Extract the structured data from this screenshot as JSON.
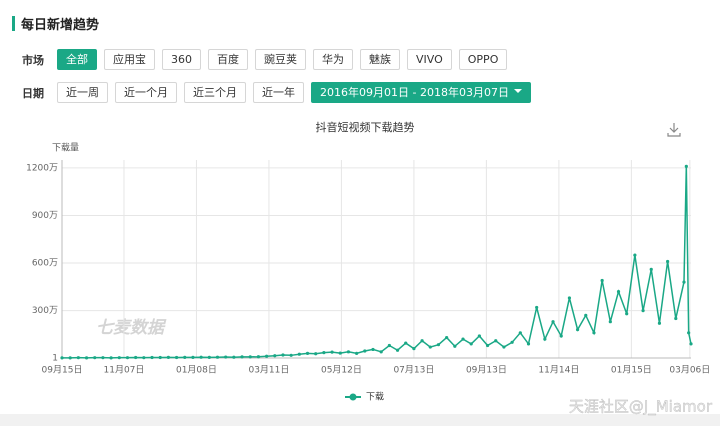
{
  "header": {
    "title": "每日新增趋势"
  },
  "market": {
    "label": "市场",
    "active": 0,
    "options": [
      "全部",
      "应用宝",
      "360",
      "百度",
      "豌豆荚",
      "华为",
      "魅族",
      "VIVO",
      "OPPO"
    ]
  },
  "date": {
    "label": "日期",
    "options": [
      "近一周",
      "近一个月",
      "近三个月",
      "近一年"
    ],
    "range": "2016年09月01日 - 2018年03月07日"
  },
  "chart_data": {
    "type": "line",
    "title": "抖音短视频下载趋势",
    "y_label": "下载量",
    "watermark": "七麦数据",
    "x": [
      "2016-09-15",
      "2016-09-22",
      "2016-09-29",
      "2016-10-06",
      "2016-10-13",
      "2016-10-20",
      "2016-10-27",
      "2016-11-03",
      "2016-11-10",
      "2016-11-17",
      "2016-11-24",
      "2016-12-01",
      "2016-12-08",
      "2016-12-15",
      "2016-12-22",
      "2016-12-29",
      "2017-01-05",
      "2017-01-12",
      "2017-01-19",
      "2017-01-26",
      "2017-02-02",
      "2017-02-09",
      "2017-02-16",
      "2017-02-23",
      "2017-03-02",
      "2017-03-09",
      "2017-03-16",
      "2017-03-23",
      "2017-03-30",
      "2017-04-06",
      "2017-04-13",
      "2017-04-20",
      "2017-04-27",
      "2017-05-04",
      "2017-05-11",
      "2017-05-18",
      "2017-05-25",
      "2017-06-01",
      "2017-06-08",
      "2017-06-15",
      "2017-06-22",
      "2017-06-29",
      "2017-07-06",
      "2017-07-13",
      "2017-07-20",
      "2017-07-27",
      "2017-08-03",
      "2017-08-10",
      "2017-08-17",
      "2017-08-24",
      "2017-08-31",
      "2017-09-07",
      "2017-09-14",
      "2017-09-21",
      "2017-09-28",
      "2017-10-05",
      "2017-10-12",
      "2017-10-19",
      "2017-10-26",
      "2017-11-02",
      "2017-11-09",
      "2017-11-16",
      "2017-11-23",
      "2017-11-30",
      "2017-12-07",
      "2017-12-14",
      "2017-12-21",
      "2017-12-28",
      "2018-01-04",
      "2018-01-11",
      "2018-01-18",
      "2018-01-25",
      "2018-02-01",
      "2018-02-08",
      "2018-02-15",
      "2018-02-22",
      "2018-03-01",
      "2018-03-03",
      "2018-03-05",
      "2018-03-07"
    ],
    "series": [
      {
        "name": "下载",
        "color": "#1aa886",
        "values": [
          2,
          2,
          3,
          2,
          3,
          3,
          2,
          3,
          3,
          4,
          3,
          4,
          4,
          5,
          4,
          5,
          5,
          6,
          5,
          6,
          7,
          6,
          8,
          8,
          9,
          12,
          15,
          20,
          18,
          25,
          30,
          28,
          35,
          38,
          32,
          40,
          30,
          45,
          55,
          40,
          80,
          50,
          95,
          60,
          110,
          70,
          85,
          130,
          75,
          120,
          90,
          140,
          80,
          110,
          70,
          100,
          160,
          90,
          320,
          120,
          230,
          140,
          380,
          180,
          270,
          160,
          490,
          230,
          420,
          280,
          650,
          300,
          560,
          220,
          610,
          250,
          480,
          1210,
          160,
          90
        ]
      }
    ],
    "xlim": [
      "2016-09-15",
      "2018-03-07"
    ],
    "xticks": [
      {
        "value": "2016-09-15",
        "label": "09月15日"
      },
      {
        "value": "2016-11-07",
        "label": "11月07日"
      },
      {
        "value": "2017-01-08",
        "label": "01月08日"
      },
      {
        "value": "2017-03-11",
        "label": "03月11日"
      },
      {
        "value": "2017-05-12",
        "label": "05月12日"
      },
      {
        "value": "2017-07-13",
        "label": "07月13日"
      },
      {
        "value": "2017-09-13",
        "label": "09月13日"
      },
      {
        "value": "2017-11-14",
        "label": "11月14日"
      },
      {
        "value": "2018-01-15",
        "label": "01月15日"
      },
      {
        "value": "2018-03-06",
        "label": "03月06日"
      }
    ],
    "ylim": [
      1,
      1250
    ],
    "yticks": [
      1,
      {
        "value": 300,
        "label": "300万"
      },
      {
        "value": 600,
        "label": "600万"
      },
      {
        "value": 900,
        "label": "900万"
      },
      {
        "value": 1200,
        "label": "1200万"
      }
    ],
    "grid": true
  },
  "footer": {
    "watermark": "天涯社区@J_Miamor"
  }
}
